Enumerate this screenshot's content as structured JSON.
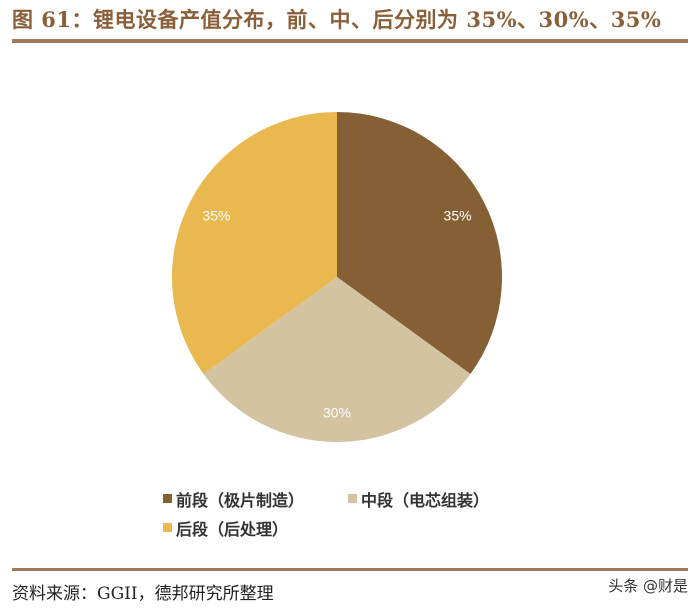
{
  "title": "图 61：锂电设备产值分布，前、中、后分别为 35%、30%、35%",
  "chart_data": {
    "type": "pie",
    "title": "锂电设备产值分布",
    "categories": [
      "前段（极片制造）",
      "中段（电芯组装）",
      "后段（后处理）"
    ],
    "values": [
      35,
      30,
      35
    ],
    "labels": [
      "35%",
      "30%",
      "35%"
    ],
    "colors": [
      "#866035",
      "#d3c3a0",
      "#e9b84f"
    ],
    "start_angle": "12 o'clock",
    "direction": "clockwise",
    "legend_position": "bottom"
  },
  "legend": {
    "items": [
      {
        "label": "前段（极片制造）",
        "color": "#866035"
      },
      {
        "label": "中段（电芯组装）",
        "color": "#d3c3a0"
      },
      {
        "label": "后段（后处理）",
        "color": "#e9b84f"
      }
    ]
  },
  "source": "资料来源：GGII，德邦研究所整理",
  "watermark": "头条 @财是"
}
